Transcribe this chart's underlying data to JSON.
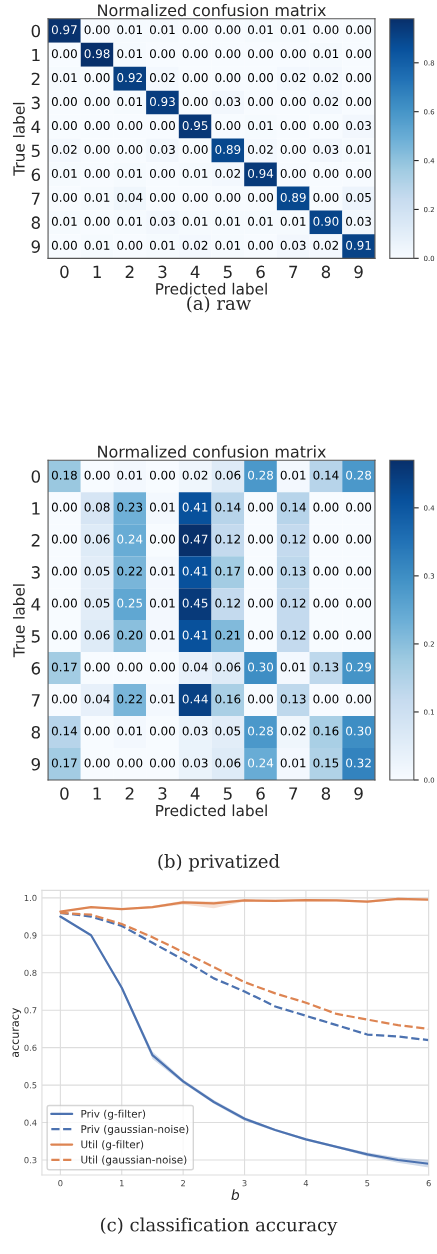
{
  "chart_data": [
    {
      "type": "heatmap",
      "title": "Normalized confusion matrix",
      "xlabel": "Predicted label",
      "ylabel": "True label",
      "annotations": [
        "(a) raw"
      ],
      "categories": [
        "0",
        "1",
        "2",
        "3",
        "4",
        "5",
        "6",
        "7",
        "8",
        "9"
      ],
      "y_categories": [
        "0",
        "1",
        "2",
        "3",
        "4",
        "5",
        "6",
        "7",
        "8",
        "9"
      ],
      "cells": [
        [
          0.97,
          0.0,
          0.01,
          0.01,
          0.0,
          0.0,
          0.01,
          0.01,
          0.0,
          0.0
        ],
        [
          0.0,
          0.98,
          0.01,
          0.0,
          0.0,
          0.0,
          0.0,
          0.0,
          0.01,
          0.0
        ],
        [
          0.01,
          0.0,
          0.92,
          0.02,
          0.0,
          0.0,
          0.0,
          0.02,
          0.02,
          0.0
        ],
        [
          0.0,
          0.0,
          0.01,
          0.93,
          0.0,
          0.03,
          0.0,
          0.0,
          0.02,
          0.0
        ],
        [
          0.0,
          0.0,
          0.0,
          0.0,
          0.95,
          0.0,
          0.01,
          0.0,
          0.0,
          0.03
        ],
        [
          0.02,
          0.0,
          0.0,
          0.03,
          0.0,
          0.89,
          0.02,
          0.0,
          0.03,
          0.01
        ],
        [
          0.01,
          0.0,
          0.01,
          0.0,
          0.01,
          0.02,
          0.94,
          0.0,
          0.0,
          0.0
        ],
        [
          0.0,
          0.01,
          0.04,
          0.0,
          0.0,
          0.0,
          0.0,
          0.89,
          0.0,
          0.05
        ],
        [
          0.01,
          0.0,
          0.01,
          0.03,
          0.01,
          0.01,
          0.01,
          0.01,
          0.9,
          0.03
        ],
        [
          0.0,
          0.01,
          0.0,
          0.01,
          0.02,
          0.01,
          0.0,
          0.03,
          0.02,
          0.91
        ]
      ],
      "cell_labels": [
        [
          "0.97",
          "0.00",
          "0.01",
          "0.01",
          "0.00",
          "0.00",
          "0.01",
          "0.01",
          "0.00",
          "0.00"
        ],
        [
          "0.00",
          "0.98",
          "0.01",
          "0.00",
          "0.00",
          "0.00",
          "0.00",
          "0.00",
          "0.01",
          "0.00"
        ],
        [
          "0.01",
          "0.00",
          "0.92",
          "0.02",
          "0.00",
          "0.00",
          "0.00",
          "0.02",
          "0.02",
          "0.00"
        ],
        [
          "0.00",
          "0.00",
          "0.01",
          "0.93",
          "0.00",
          "0.03",
          "0.00",
          "0.00",
          "0.02",
          "0.00"
        ],
        [
          "0.00",
          "0.00",
          "0.00",
          "0.00",
          "0.95",
          "0.00",
          "0.01",
          "0.00",
          "0.00",
          "0.03"
        ],
        [
          "0.02",
          "0.00",
          "0.00",
          "0.03",
          "0.00",
          "0.89",
          "0.02",
          "0.00",
          "0.03",
          "0.01"
        ],
        [
          "0.01",
          "0.00",
          "0.01",
          "0.00",
          "0.01",
          "0.02",
          "0.94",
          "0.00",
          "0.00",
          "0.00"
        ],
        [
          "0.00",
          "0.01",
          "0.04",
          "0.00",
          "0.00",
          "0.00",
          "0.00",
          "0.89",
          "0.00",
          "0.05"
        ],
        [
          "0.01",
          "0.00",
          "0.01",
          "0.03",
          "0.01",
          "0.01",
          "0.01",
          "0.01",
          "0.90",
          "0.03"
        ],
        [
          "0.00",
          "0.01",
          "0.00",
          "0.01",
          "0.02",
          "0.01",
          "0.00",
          "0.03",
          "0.02",
          "0.91"
        ]
      ],
      "clim": [
        0,
        0.98
      ],
      "cticks": [
        {
          "value": 0,
          "label": "0.0"
        },
        {
          "value": 0.2,
          "label": "0.2"
        },
        {
          "value": 0.4,
          "label": "0.4"
        },
        {
          "value": 0.6,
          "label": "0.6"
        },
        {
          "value": 0.8,
          "label": "0.8"
        }
      ]
    },
    {
      "type": "heatmap",
      "title": "Normalized confusion matrix",
      "xlabel": "Predicted label",
      "ylabel": "True label",
      "annotations": [
        "(b) privatized"
      ],
      "categories": [
        "0",
        "1",
        "2",
        "3",
        "4",
        "5",
        "6",
        "7",
        "8",
        "9"
      ],
      "y_categories": [
        "0",
        "1",
        "2",
        "3",
        "4",
        "5",
        "6",
        "7",
        "8",
        "9"
      ],
      "cells": [
        [
          0.18,
          0.0,
          0.01,
          0.0,
          0.02,
          0.06,
          0.28,
          0.01,
          0.14,
          0.28
        ],
        [
          0.0,
          0.08,
          0.23,
          0.01,
          0.41,
          0.14,
          0.0,
          0.14,
          0.0,
          0.0
        ],
        [
          0.0,
          0.06,
          0.24,
          0.0,
          0.47,
          0.12,
          0.0,
          0.12,
          0.0,
          0.0
        ],
        [
          0.0,
          0.05,
          0.22,
          0.01,
          0.41,
          0.17,
          0.0,
          0.13,
          0.0,
          0.0
        ],
        [
          0.0,
          0.05,
          0.25,
          0.01,
          0.45,
          0.12,
          0.0,
          0.12,
          0.0,
          0.0
        ],
        [
          0.0,
          0.06,
          0.2,
          0.01,
          0.41,
          0.21,
          0.0,
          0.12,
          0.0,
          0.0
        ],
        [
          0.17,
          0.0,
          0.0,
          0.0,
          0.04,
          0.06,
          0.3,
          0.01,
          0.13,
          0.29
        ],
        [
          0.0,
          0.04,
          0.22,
          0.01,
          0.44,
          0.16,
          0.0,
          0.13,
          0.0,
          0.0
        ],
        [
          0.14,
          0.0,
          0.01,
          0.0,
          0.03,
          0.05,
          0.28,
          0.02,
          0.16,
          0.3
        ],
        [
          0.17,
          0.0,
          0.0,
          0.0,
          0.03,
          0.06,
          0.24,
          0.01,
          0.15,
          0.32
        ]
      ],
      "cell_labels": [
        [
          "0.18",
          "0.00",
          "0.01",
          "0.00",
          "0.02",
          "0.06",
          "0.28",
          "0.01",
          "0.14",
          "0.28"
        ],
        [
          "0.00",
          "0.08",
          "0.23",
          "0.01",
          "0.41",
          "0.14",
          "0.00",
          "0.14",
          "0.00",
          "0.00"
        ],
        [
          "0.00",
          "0.06",
          "0.24",
          "0.00",
          "0.47",
          "0.12",
          "0.00",
          "0.12",
          "0.00",
          "0.00"
        ],
        [
          "0.00",
          "0.05",
          "0.22",
          "0.01",
          "0.41",
          "0.17",
          "0.00",
          "0.13",
          "0.00",
          "0.00"
        ],
        [
          "0.00",
          "0.05",
          "0.25",
          "0.01",
          "0.45",
          "0.12",
          "0.00",
          "0.12",
          "0.00",
          "0.00"
        ],
        [
          "0.00",
          "0.06",
          "0.20",
          "0.01",
          "0.41",
          "0.21",
          "0.00",
          "0.12",
          "0.00",
          "0.00"
        ],
        [
          "0.17",
          "0.00",
          "0.00",
          "0.00",
          "0.04",
          "0.06",
          "0.30",
          "0.01",
          "0.13",
          "0.29"
        ],
        [
          "0.00",
          "0.04",
          "0.22",
          "0.01",
          "0.44",
          "0.16",
          "0.00",
          "0.13",
          "0.00",
          "0.00"
        ],
        [
          "0.14",
          "0.00",
          "0.01",
          "0.00",
          "0.03",
          "0.05",
          "0.28",
          "0.02",
          "0.16",
          "0.30"
        ],
        [
          "0.17",
          "0.00",
          "0.00",
          "0.00",
          "0.03",
          "0.06",
          "0.24",
          "0.01",
          "0.15",
          "0.32"
        ]
      ],
      "clim": [
        0,
        0.47
      ],
      "cticks": [
        {
          "value": 0,
          "label": "0.0"
        },
        {
          "value": 0.1,
          "label": "0.1"
        },
        {
          "value": 0.2,
          "label": "0.2"
        },
        {
          "value": 0.3,
          "label": "0.3"
        },
        {
          "value": 0.4,
          "label": "0.4"
        }
      ]
    },
    {
      "type": "line",
      "xlabel": "b",
      "ylabel": "accuracy",
      "annotations": [
        "(c) classification accuracy"
      ],
      "grid": true,
      "legend": "bottom left",
      "x": [
        0,
        0.5,
        1,
        1.5,
        2,
        2.5,
        3,
        3.5,
        4,
        4.5,
        5,
        5.5,
        6
      ],
      "series": [
        {
          "name": "Priv (g-filter)",
          "color": "#4c72b0",
          "line_style": "solid",
          "values": [
            0.95,
            0.9,
            0.76,
            0.58,
            0.51,
            0.455,
            0.41,
            0.38,
            0.355,
            0.335,
            0.315,
            0.3,
            0.29
          ],
          "lower": [
            0.948,
            0.898,
            0.755,
            0.57,
            0.505,
            0.45,
            0.405,
            0.377,
            0.352,
            0.332,
            0.31,
            0.293,
            0.28
          ],
          "upper": [
            0.952,
            0.902,
            0.765,
            0.59,
            0.515,
            0.46,
            0.415,
            0.383,
            0.358,
            0.338,
            0.32,
            0.307,
            0.3
          ]
        },
        {
          "name": "Priv (gaussian-noise)",
          "color": "#4c72b0",
          "line_style": "dashed",
          "values": [
            0.96,
            0.95,
            0.925,
            0.88,
            0.835,
            0.785,
            0.75,
            0.71,
            0.685,
            0.66,
            0.635,
            0.63,
            0.62
          ]
        },
        {
          "name": "Util (g-filter)",
          "color": "#dd8452",
          "line_style": "solid",
          "values": [
            0.963,
            0.975,
            0.97,
            0.975,
            0.988,
            0.985,
            0.993,
            0.992,
            0.994,
            0.993,
            0.99,
            0.997,
            0.995
          ],
          "lower": [
            0.961,
            0.973,
            0.968,
            0.972,
            0.982,
            0.972,
            0.99,
            0.989,
            0.991,
            0.99,
            0.987,
            0.994,
            0.992
          ],
          "upper": [
            0.965,
            0.977,
            0.972,
            0.978,
            0.992,
            0.99,
            0.996,
            0.995,
            0.997,
            0.996,
            0.993,
            1.0,
            0.998
          ]
        },
        {
          "name": "Util (gaussian-noise)",
          "color": "#dd8452",
          "line_style": "dashed",
          "values": [
            0.96,
            0.955,
            0.93,
            0.895,
            0.855,
            0.815,
            0.775,
            0.745,
            0.72,
            0.69,
            0.675,
            0.66,
            0.65
          ]
        }
      ],
      "xlim": [
        -0.3,
        6
      ],
      "ylim": [
        0.26,
        1.02
      ],
      "xticks": [
        0,
        1,
        2,
        3,
        4,
        5,
        6
      ],
      "yticks": [
        0.3,
        0.4,
        0.5,
        0.6,
        0.7,
        0.8,
        0.9,
        {
          "value": 1,
          "label": "1.0"
        }
      ]
    }
  ]
}
